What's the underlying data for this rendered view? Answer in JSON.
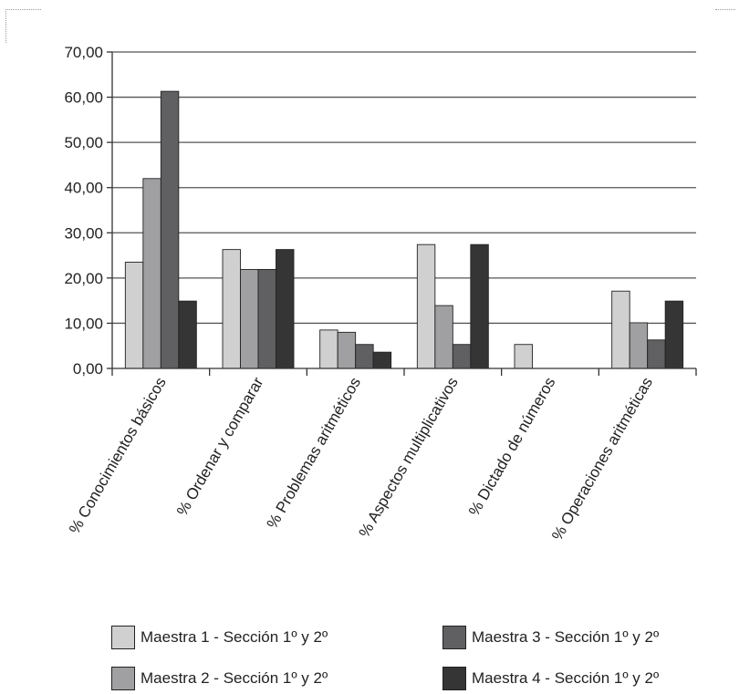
{
  "chart_data": {
    "type": "bar",
    "categories": [
      "% Conocimientos básicos",
      "% Ordenar y comparar",
      "% Problemas aritméticos",
      "% Aspectos multiplicativos",
      "% Dictado de números",
      "% Operaciones aritméticas"
    ],
    "series": [
      {
        "name": "Maestra 1 - Sección 1º y 2º",
        "color": "#d0d0d0",
        "values": [
          23.5,
          26.3,
          8.5,
          27.4,
          5.3,
          17.1
        ]
      },
      {
        "name": "Maestra 2 - Sección 1º y 2º",
        "color": "#a0a0a2",
        "values": [
          42.0,
          21.9,
          8.0,
          13.9,
          0,
          10.1
        ]
      },
      {
        "name": "Maestra 3 - Sección 1º y 2º",
        "color": "#606062",
        "values": [
          61.3,
          21.9,
          5.3,
          5.3,
          0,
          6.3
        ]
      },
      {
        "name": "Maestra 4 - Sección 1º y 2º",
        "color": "#353535",
        "values": [
          14.9,
          26.3,
          3.6,
          27.4,
          0,
          14.9
        ]
      }
    ],
    "ylim": [
      0,
      70
    ],
    "yticks": [
      "0,00",
      "10,00",
      "20,00",
      "30,00",
      "40,00",
      "50,00",
      "60,00",
      "70,00"
    ],
    "grid": true,
    "legend_position": "bottom"
  }
}
